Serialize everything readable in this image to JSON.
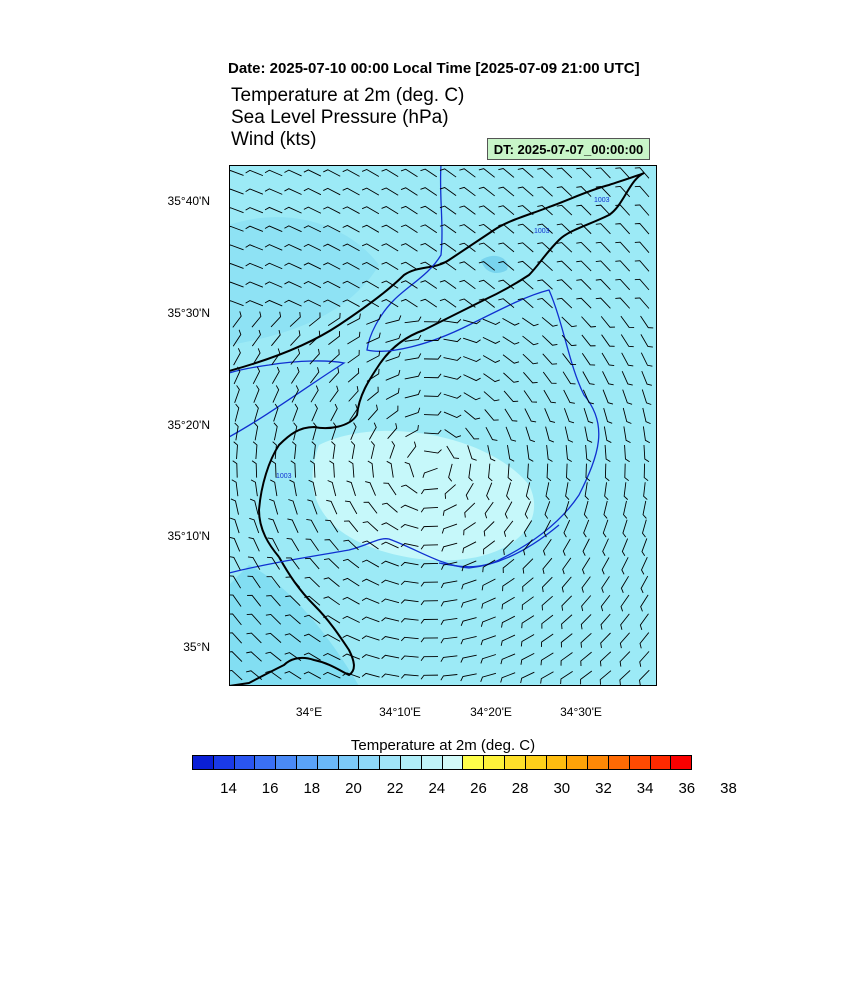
{
  "header": {
    "date_line": "Date: 2025-07-10  00:00 Local Time [2025-07-09  21:00 UTC]",
    "field_1": "Temperature at 2m   (deg. C)",
    "field_2": "Sea Level Pressure   (hPa)",
    "field_3": "Wind   (kts)",
    "dt_label": "DT: 2025-07-07_00:00:00"
  },
  "map": {
    "lat_labels": [
      "35°40'N",
      "35°30'N",
      "35°20'N",
      "35°10'N",
      "35°N"
    ],
    "lon_labels": [
      "34°E",
      "34°10'E",
      "34°20'E",
      "34°30'E"
    ],
    "isobar_labels": [
      "1003",
      "1003",
      "1003"
    ],
    "colors": {
      "ocean_fill": "#9ceaf6",
      "warm_fill": "#c6f8fa",
      "cool_fill": "#82def2",
      "coast": "#000000",
      "isobar": "#1030d0",
      "barb": "#000000"
    }
  },
  "colorbar": {
    "title": "Temperature at 2m  (deg. C)",
    "tick_labels": [
      "14",
      "16",
      "18",
      "20",
      "22",
      "24",
      "26",
      "28",
      "30",
      "32",
      "34",
      "36",
      "38"
    ],
    "swatches": [
      "#0a1fd6",
      "#1a3ae8",
      "#2a55f0",
      "#3a70f4",
      "#4a8af6",
      "#5aa3f8",
      "#6ab8f8",
      "#7ccaf8",
      "#8ed8f8",
      "#a0e4f8",
      "#b0eef8",
      "#bff3f8",
      "#d2faf8",
      "#fefe4a",
      "#fef23a",
      "#fee02a",
      "#fed01a",
      "#febc10",
      "#fea208",
      "#fe8806",
      "#fe6a04",
      "#fe4a02",
      "#fe2a00",
      "#fa0000"
    ]
  }
}
